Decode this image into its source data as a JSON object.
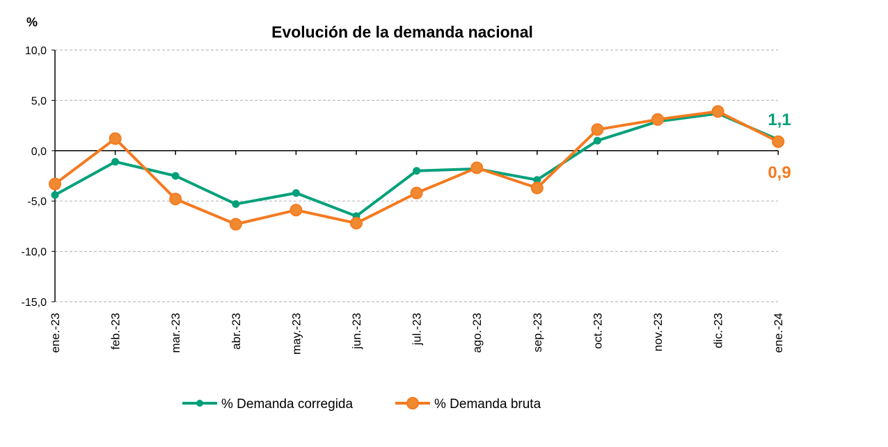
{
  "chart_data": {
    "type": "line",
    "title": "Evolución de la demanda nacional",
    "ylabel": "%",
    "xlabel": "",
    "ylim": [
      -15,
      10
    ],
    "yticks": [
      "10,0",
      "5,0",
      "0,0",
      "-5,0",
      "-10,0",
      "-15,0"
    ],
    "ytick_values": [
      10,
      5,
      0,
      -5,
      -10,
      -15
    ],
    "grid": "horizontal dashed",
    "legend": "bottom",
    "categories": [
      "ene.-23",
      "feb.-23",
      "mar.-23",
      "abr.-23",
      "may.-23",
      "jun.-23",
      "jul.-23",
      "ago.-23",
      "sep.-23",
      "oct.-23",
      "nov.-23",
      "dic.-23",
      "ene.-24"
    ],
    "series": [
      {
        "name": "% Demanda corregida",
        "color": "#00A07A",
        "values": [
          -4.4,
          -1.1,
          -2.5,
          -5.3,
          -4.2,
          -6.5,
          -2.0,
          -1.8,
          -2.9,
          1.0,
          2.9,
          3.7,
          1.1
        ],
        "end_label": "1,1"
      },
      {
        "name": "% Demanda bruta",
        "color": "#F47A20",
        "values": [
          -3.3,
          1.2,
          -4.8,
          -7.3,
          -5.9,
          -7.2,
          -4.2,
          -1.7,
          -3.7,
          2.1,
          3.1,
          3.9,
          0.9
        ],
        "end_label": "0,9"
      }
    ]
  }
}
